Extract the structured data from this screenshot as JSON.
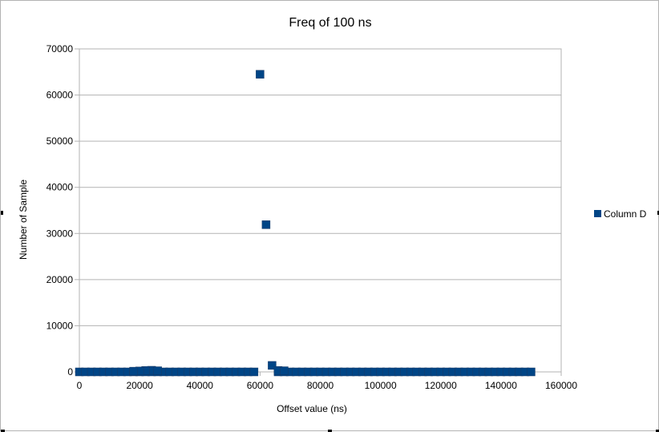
{
  "chart_data": {
    "type": "scatter",
    "title": "Freq of 100 ns",
    "xlabel": "Offset value (ns)",
    "ylabel": "Number of Sample",
    "xlim": [
      0,
      160000
    ],
    "ylim": [
      0,
      70000
    ],
    "x_ticks": [
      "0",
      "20000",
      "40000",
      "60000",
      "80000",
      "100000",
      "120000",
      "140000",
      "160000"
    ],
    "y_ticks": [
      "0",
      "10000",
      "20000",
      "30000",
      "40000",
      "50000",
      "60000",
      "70000"
    ],
    "grid": true,
    "legend_position": "right",
    "series": [
      {
        "name": "Column D",
        "color": "#004586",
        "marker": "square",
        "points": [
          [
            60000,
            64500
          ],
          [
            62000,
            31900
          ],
          [
            64000,
            1400
          ],
          [
            66000,
            300
          ],
          [
            68000,
            250
          ],
          [
            24000,
            350
          ],
          [
            22000,
            300
          ],
          [
            26000,
            250
          ],
          [
            20000,
            200
          ],
          [
            18000,
            150
          ]
        ],
        "baseline_points": {
          "x_start": 0,
          "x_end": 150000,
          "x_step": 2000,
          "y": 0
        }
      }
    ]
  },
  "colors": {
    "frame_border": "#b3b3b3",
    "plot_border": "#b3b3b3",
    "grid": "#b3b3b3",
    "series": "#004586"
  }
}
